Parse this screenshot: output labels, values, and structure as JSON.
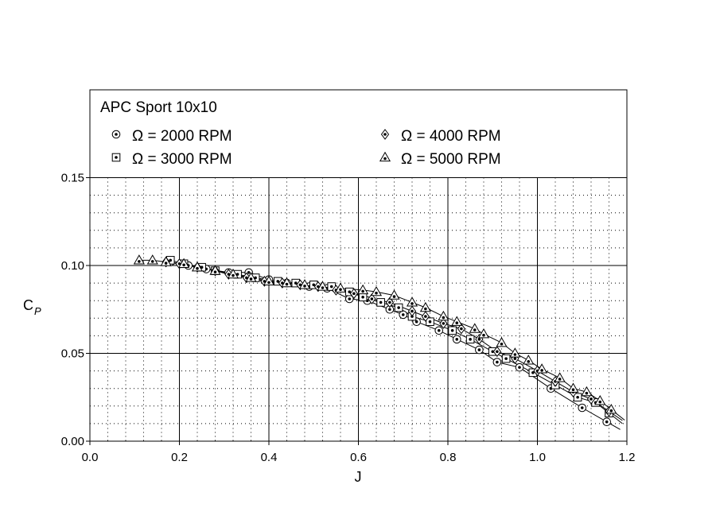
{
  "chart_data": {
    "type": "scatter",
    "title": "APC Sport 10x10",
    "xlabel": "J",
    "ylabel": "C",
    "ylabel_sub": "P",
    "xlim": [
      0.0,
      1.2
    ],
    "ylim": [
      0.0,
      0.2
    ],
    "xticks": [
      "0.0",
      "0.2",
      "0.4",
      "0.6",
      "0.8",
      "1.0",
      "1.2"
    ],
    "yticks": [
      "0.00",
      "0.05",
      "0.10",
      "0.15"
    ],
    "grid": true,
    "legend_position": "top-inside",
    "series": [
      {
        "name": "Ω = 2000 RPM",
        "marker": "circle",
        "points": [
          [
            0.18,
            0.102
          ],
          [
            0.22,
            0.1
          ],
          [
            0.26,
            0.098
          ],
          [
            0.31,
            0.096
          ],
          [
            0.355,
            0.096
          ],
          [
            0.4,
            0.092
          ],
          [
            0.44,
            0.09
          ],
          [
            0.49,
            0.088
          ],
          [
            0.53,
            0.087
          ],
          [
            0.58,
            0.081
          ],
          [
            0.62,
            0.08
          ],
          [
            0.67,
            0.075
          ],
          [
            0.7,
            0.072
          ],
          [
            0.73,
            0.068
          ],
          [
            0.78,
            0.063
          ],
          [
            0.82,
            0.058
          ],
          [
            0.87,
            0.052
          ],
          [
            0.91,
            0.045
          ],
          [
            0.96,
            0.042
          ],
          [
            1.03,
            0.03
          ],
          [
            1.1,
            0.019
          ],
          [
            1.155,
            0.011
          ]
        ]
      },
      {
        "name": "Ω = 3000 RPM",
        "marker": "square",
        "points": [
          [
            0.18,
            0.103
          ],
          [
            0.21,
            0.101
          ],
          [
            0.25,
            0.099
          ],
          [
            0.28,
            0.097
          ],
          [
            0.33,
            0.095
          ],
          [
            0.37,
            0.093
          ],
          [
            0.42,
            0.091
          ],
          [
            0.46,
            0.09
          ],
          [
            0.5,
            0.089
          ],
          [
            0.54,
            0.088
          ],
          [
            0.58,
            0.085
          ],
          [
            0.61,
            0.082
          ],
          [
            0.65,
            0.079
          ],
          [
            0.69,
            0.076
          ],
          [
            0.72,
            0.071
          ],
          [
            0.76,
            0.068
          ],
          [
            0.81,
            0.063
          ],
          [
            0.85,
            0.058
          ],
          [
            0.9,
            0.051
          ],
          [
            0.93,
            0.047
          ],
          [
            0.99,
            0.039
          ],
          [
            1.04,
            0.032
          ],
          [
            1.09,
            0.025
          ],
          [
            1.13,
            0.022
          ],
          [
            1.16,
            0.016
          ]
        ]
      },
      {
        "name": "Ω = 4000 RPM",
        "marker": "diamond",
        "points": [
          [
            0.17,
            0.102
          ],
          [
            0.2,
            0.101
          ],
          [
            0.24,
            0.099
          ],
          [
            0.28,
            0.097
          ],
          [
            0.31,
            0.095
          ],
          [
            0.35,
            0.093
          ],
          [
            0.39,
            0.091
          ],
          [
            0.43,
            0.09
          ],
          [
            0.47,
            0.089
          ],
          [
            0.51,
            0.088
          ],
          [
            0.55,
            0.086
          ],
          [
            0.59,
            0.084
          ],
          [
            0.63,
            0.081
          ],
          [
            0.67,
            0.079
          ],
          [
            0.72,
            0.074
          ],
          [
            0.75,
            0.071
          ],
          [
            0.79,
            0.067
          ],
          [
            0.83,
            0.064
          ],
          [
            0.87,
            0.058
          ],
          [
            0.91,
            0.051
          ],
          [
            0.95,
            0.047
          ],
          [
            1.0,
            0.04
          ],
          [
            1.04,
            0.034
          ],
          [
            1.08,
            0.028
          ],
          [
            1.12,
            0.024
          ],
          [
            1.16,
            0.017
          ]
        ]
      },
      {
        "name": "Ω = 5000 RPM",
        "marker": "triangle",
        "points": [
          [
            0.11,
            0.103
          ],
          [
            0.14,
            0.103
          ],
          [
            0.17,
            0.102
          ],
          [
            0.21,
            0.101
          ],
          [
            0.24,
            0.099
          ],
          [
            0.28,
            0.097
          ],
          [
            0.32,
            0.095
          ],
          [
            0.36,
            0.093
          ],
          [
            0.4,
            0.091
          ],
          [
            0.44,
            0.09
          ],
          [
            0.48,
            0.089
          ],
          [
            0.52,
            0.088
          ],
          [
            0.56,
            0.087
          ],
          [
            0.61,
            0.086
          ],
          [
            0.64,
            0.085
          ],
          [
            0.68,
            0.083
          ],
          [
            0.72,
            0.079
          ],
          [
            0.75,
            0.076
          ],
          [
            0.79,
            0.071
          ],
          [
            0.82,
            0.068
          ],
          [
            0.86,
            0.064
          ],
          [
            0.88,
            0.061
          ],
          [
            0.92,
            0.056
          ],
          [
            0.95,
            0.05
          ],
          [
            0.98,
            0.046
          ],
          [
            1.01,
            0.041
          ],
          [
            1.05,
            0.036
          ],
          [
            1.08,
            0.03
          ],
          [
            1.11,
            0.028
          ],
          [
            1.14,
            0.023
          ],
          [
            1.165,
            0.018
          ]
        ]
      }
    ]
  }
}
